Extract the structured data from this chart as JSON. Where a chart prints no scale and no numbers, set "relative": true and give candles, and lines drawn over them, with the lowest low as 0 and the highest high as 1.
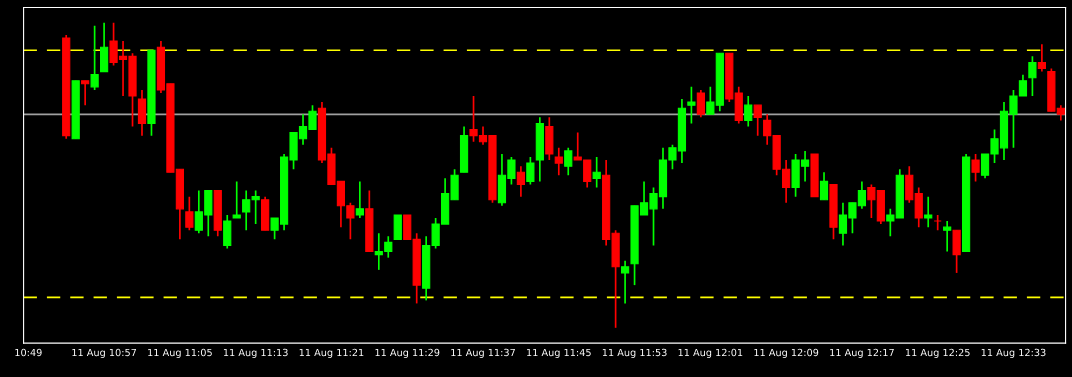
{
  "chart_data": {
    "type": "candlestick",
    "relative": true,
    "tick_labels": "x",
    "grid": false,
    "legend": false,
    "categories": [
      "10:49",
      null,
      null,
      null,
      null,
      null,
      null,
      null,
      "11 Aug 10:57",
      null,
      null,
      null,
      null,
      null,
      null,
      null,
      "11 Aug 11:05",
      null,
      null,
      null,
      null,
      null,
      null,
      null,
      "11 Aug 11:13",
      null,
      null,
      null,
      null,
      null,
      null,
      null,
      "11 Aug 11:21",
      null,
      null,
      null,
      null,
      null,
      null,
      null,
      "11 Aug 11:29",
      null,
      null,
      null,
      null,
      null,
      null,
      null,
      "11 Aug 11:37",
      null,
      null,
      null,
      null,
      null,
      null,
      null,
      "11 Aug 11:45",
      null,
      null,
      null,
      null,
      null,
      null,
      null,
      "11 Aug 11:53",
      null,
      null,
      null,
      null,
      null,
      null,
      null,
      "11 Aug 12:01",
      null,
      null,
      null,
      null,
      null,
      null,
      null,
      "11 Aug 12:09",
      null,
      null,
      null,
      null,
      null,
      null,
      null,
      "11 Aug 12:17",
      null,
      null,
      null,
      null,
      null,
      null,
      null,
      "11 Aug 12:25",
      null,
      null,
      null,
      null,
      null,
      null,
      null,
      "11 Aug 12:33",
      null,
      null,
      null,
      null,
      null
    ],
    "ohlc": [
      null,
      null,
      null,
      null,
      [
        0.95,
        0.96,
        0.62,
        0.63
      ],
      [
        0.62,
        0.81,
        0.62,
        0.81
      ],
      [
        0.81,
        0.81,
        0.73,
        0.8
      ],
      [
        0.79,
        0.99,
        0.78,
        0.83
      ],
      [
        0.84,
        1.0,
        0.84,
        0.92
      ],
      [
        0.94,
        1.0,
        0.86,
        0.87
      ],
      [
        0.89,
        0.94,
        0.76,
        0.88
      ],
      [
        0.89,
        0.9,
        0.66,
        0.76
      ],
      [
        0.75,
        0.78,
        0.63,
        0.67
      ],
      [
        0.67,
        0.91,
        0.63,
        0.91
      ],
      [
        0.92,
        0.94,
        0.77,
        0.78
      ],
      [
        0.8,
        0.8,
        0.51,
        0.51
      ],
      [
        0.52,
        0.52,
        0.29,
        0.39
      ],
      [
        0.38,
        0.43,
        0.32,
        0.33
      ],
      [
        0.32,
        0.45,
        0.31,
        0.38
      ],
      [
        0.37,
        0.45,
        0.3,
        0.45
      ],
      [
        0.45,
        0.45,
        0.3,
        0.32
      ],
      [
        0.27,
        0.37,
        0.26,
        0.35
      ],
      [
        0.36,
        0.48,
        0.36,
        0.37
      ],
      [
        0.38,
        0.45,
        0.32,
        0.42
      ],
      [
        0.42,
        0.45,
        0.34,
        0.43
      ],
      [
        0.42,
        0.43,
        0.32,
        0.32
      ],
      [
        0.32,
        0.36,
        0.29,
        0.36
      ],
      [
        0.34,
        0.57,
        0.32,
        0.56
      ],
      [
        0.55,
        0.64,
        0.52,
        0.64
      ],
      [
        0.62,
        0.7,
        0.6,
        0.66
      ],
      [
        0.65,
        0.73,
        0.65,
        0.71
      ],
      [
        0.72,
        0.74,
        0.54,
        0.55
      ],
      [
        0.57,
        0.59,
        0.47,
        0.47
      ],
      [
        0.48,
        0.48,
        0.33,
        0.4
      ],
      [
        0.4,
        0.41,
        0.29,
        0.36
      ],
      [
        0.37,
        0.48,
        0.36,
        0.39
      ],
      [
        0.39,
        0.45,
        0.25,
        0.25
      ],
      [
        0.24,
        0.31,
        0.19,
        0.25
      ],
      [
        0.25,
        0.3,
        0.23,
        0.28
      ],
      [
        0.29,
        0.37,
        0.29,
        0.37
      ],
      [
        0.37,
        0.37,
        0.29,
        0.29
      ],
      [
        0.29,
        0.31,
        0.08,
        0.14
      ],
      [
        0.13,
        0.3,
        0.09,
        0.27
      ],
      [
        0.27,
        0.36,
        0.26,
        0.34
      ],
      [
        0.34,
        0.49,
        0.34,
        0.44
      ],
      [
        0.42,
        0.52,
        0.42,
        0.5
      ],
      [
        0.51,
        0.66,
        0.51,
        0.63
      ],
      [
        0.65,
        0.76,
        0.61,
        0.63
      ],
      [
        0.63,
        0.66,
        0.6,
        0.61
      ],
      [
        0.63,
        0.63,
        0.41,
        0.42
      ],
      [
        0.41,
        0.57,
        0.4,
        0.5
      ],
      [
        0.49,
        0.56,
        0.47,
        0.55
      ],
      [
        0.51,
        0.53,
        0.43,
        0.47
      ],
      [
        0.48,
        0.56,
        0.47,
        0.54
      ],
      [
        0.55,
        0.69,
        0.48,
        0.67
      ],
      [
        0.66,
        0.69,
        0.55,
        0.57
      ],
      [
        0.56,
        0.59,
        0.5,
        0.54
      ],
      [
        0.53,
        0.59,
        0.5,
        0.58
      ],
      [
        0.56,
        0.64,
        0.55,
        0.55
      ],
      [
        0.55,
        0.55,
        0.46,
        0.48
      ],
      [
        0.49,
        0.56,
        0.46,
        0.51
      ],
      [
        0.5,
        0.55,
        0.27,
        0.29
      ],
      [
        0.31,
        0.32,
        0.0,
        0.2
      ],
      [
        0.18,
        0.22,
        0.08,
        0.2
      ],
      [
        0.21,
        0.4,
        0.14,
        0.4
      ],
      [
        0.37,
        0.48,
        0.37,
        0.41
      ],
      [
        0.39,
        0.46,
        0.27,
        0.44
      ],
      [
        0.43,
        0.59,
        0.39,
        0.55
      ],
      [
        0.55,
        0.6,
        0.52,
        0.59
      ],
      [
        0.58,
        0.75,
        0.54,
        0.72
      ],
      [
        0.73,
        0.79,
        0.67,
        0.74
      ],
      [
        0.77,
        0.78,
        0.69,
        0.7
      ],
      [
        0.7,
        0.79,
        0.7,
        0.74
      ],
      [
        0.73,
        0.9,
        0.71,
        0.9
      ],
      [
        0.9,
        0.9,
        0.74,
        0.75
      ],
      [
        0.77,
        0.79,
        0.67,
        0.68
      ],
      [
        0.68,
        0.76,
        0.66,
        0.73
      ],
      [
        0.73,
        0.73,
        0.63,
        0.69
      ],
      [
        0.68,
        0.7,
        0.6,
        0.63
      ],
      [
        0.63,
        0.63,
        0.5,
        0.52
      ],
      [
        0.52,
        0.55,
        0.41,
        0.46
      ],
      [
        0.46,
        0.57,
        0.43,
        0.55
      ],
      [
        0.53,
        0.58,
        0.48,
        0.55
      ],
      [
        0.57,
        0.57,
        0.43,
        0.43
      ],
      [
        0.42,
        0.51,
        0.42,
        0.48
      ],
      [
        0.47,
        0.47,
        0.29,
        0.33
      ],
      [
        0.31,
        0.41,
        0.27,
        0.37
      ],
      [
        0.36,
        0.41,
        0.31,
        0.41
      ],
      [
        0.4,
        0.48,
        0.39,
        0.45
      ],
      [
        0.46,
        0.47,
        0.36,
        0.42
      ],
      [
        0.45,
        0.45,
        0.34,
        0.35
      ],
      [
        0.35,
        0.39,
        0.3,
        0.37
      ],
      [
        0.36,
        0.52,
        0.36,
        0.5
      ],
      [
        0.5,
        0.53,
        0.41,
        0.42
      ],
      [
        0.44,
        0.46,
        0.33,
        0.36
      ],
      [
        0.36,
        0.43,
        0.33,
        0.37
      ],
      [
        0.35,
        0.37,
        0.32,
        0.35
      ],
      [
        0.32,
        0.35,
        0.25,
        0.33
      ],
      [
        0.32,
        0.32,
        0.18,
        0.24
      ],
      [
        0.25,
        0.57,
        0.25,
        0.56
      ],
      [
        0.55,
        0.57,
        0.48,
        0.51
      ],
      [
        0.5,
        0.57,
        0.49,
        0.57
      ],
      [
        0.57,
        0.65,
        0.54,
        0.62
      ],
      [
        0.59,
        0.74,
        0.55,
        0.71
      ],
      [
        0.7,
        0.78,
        0.59,
        0.76
      ],
      [
        0.76,
        0.83,
        0.76,
        0.81
      ],
      [
        0.82,
        0.89,
        0.76,
        0.87
      ],
      [
        0.87,
        0.93,
        0.84,
        0.85
      ],
      [
        0.84,
        0.85,
        0.71,
        0.71
      ],
      [
        0.72,
        0.73,
        0.68,
        0.7
      ]
    ],
    "colors": [
      null,
      null,
      null,
      null,
      "#ff0000",
      "#00ff00",
      "#ff0000",
      "#00ff00",
      "#00ff00",
      "#ff0000",
      "#ff0000",
      "#ff0000",
      "#ff0000",
      "#00ff00",
      "#ff0000",
      "#ff0000",
      "#ff0000",
      "#ff0000",
      "#00ff00",
      "#00ff00",
      "#ff0000",
      "#00ff00",
      "#00ff00",
      "#00ff00",
      "#00ff00",
      "#ff0000",
      "#00ff00",
      "#00ff00",
      "#00ff00",
      "#00ff00",
      "#00ff00",
      "#ff0000",
      "#ff0000",
      "#ff0000",
      "#ff0000",
      "#00ff00",
      "#ff0000",
      "#00ff00",
      "#00ff00",
      "#00ff00",
      "#ff0000",
      "#ff0000",
      "#00ff00",
      "#00ff00",
      "#00ff00",
      "#00ff00",
      "#00ff00",
      "#ff0000",
      "#ff0000",
      "#ff0000",
      "#00ff00",
      "#00ff00",
      "#ff0000",
      "#00ff00",
      "#00ff00",
      "#ff0000",
      "#ff0000",
      "#00ff00",
      "#ff0000",
      "#ff0000",
      "#00ff00",
      "#ff0000",
      "#ff0000",
      "#00ff00",
      "#00ff00",
      "#00ff00",
      "#00ff00",
      "#00ff00",
      "#00ff00",
      "#00ff00",
      "#00ff00",
      "#ff0000",
      "#00ff00",
      "#00ff00",
      "#ff0000",
      "#ff0000",
      "#00ff00",
      "#ff0000",
      "#ff0000",
      "#ff0000",
      "#ff0000",
      "#00ff00",
      "#00ff00",
      "#ff0000",
      "#00ff00",
      "#ff0000",
      "#00ff00",
      "#00ff00",
      "#00ff00",
      "#ff0000",
      "#ff0000",
      "#00ff00",
      "#00ff00",
      "#ff0000",
      "#ff0000",
      "#00ff00",
      "#ff0000",
      "#00ff00",
      "#ff0000",
      "#00ff00",
      "#ff0000",
      "#00ff00",
      "#00ff00",
      "#00ff00",
      "#00ff00",
      "#00ff00",
      "#00ff00",
      "#ff0000",
      "#ff0000",
      "#ff0000"
    ],
    "ref_lines": [
      {
        "axis": "y",
        "value": 0.7,
        "color": "#a0a0a0",
        "line_style": "solid"
      },
      {
        "axis": "y",
        "value": 0.91,
        "color": "#ffff00",
        "line_style": "dashed"
      },
      {
        "axis": "y",
        "value": 0.1,
        "color": "#ffff00",
        "line_style": "dashed"
      }
    ]
  }
}
